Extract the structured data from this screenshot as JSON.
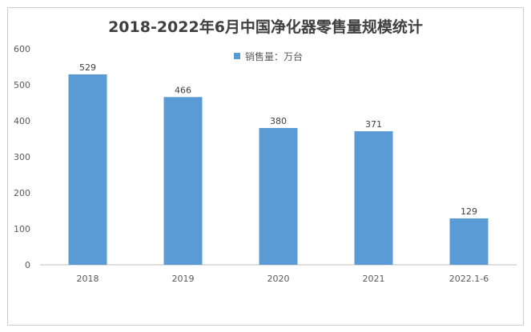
{
  "chart_data": {
    "type": "bar",
    "title": "2018-2022年6月中国净化器零售量规模统计",
    "categories": [
      "2018",
      "2019",
      "2020",
      "2021",
      "2022.1-6"
    ],
    "series": [
      {
        "name": "销售量：万台",
        "values": [
          529,
          466,
          380,
          371,
          129
        ],
        "color": "#5b9bd5"
      }
    ],
    "ylim": [
      0,
      600
    ],
    "yticks": [
      0,
      100,
      200,
      300,
      400,
      500,
      600
    ],
    "xlabel": "",
    "ylabel": "",
    "grid": false,
    "legend": "top-center"
  }
}
